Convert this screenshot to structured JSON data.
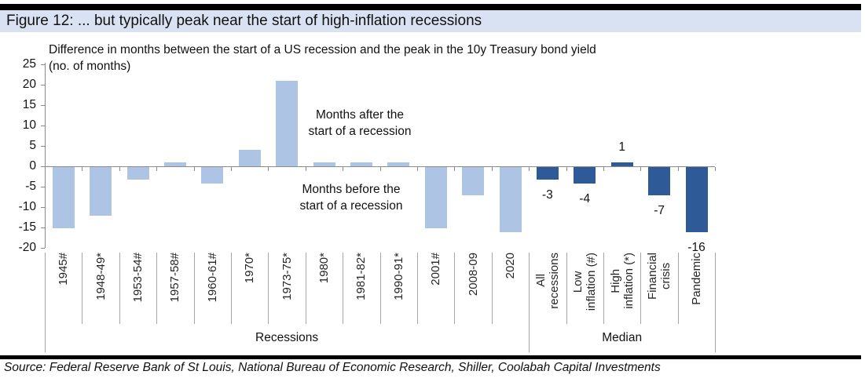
{
  "page": {
    "title": "Figure 12: ... but typically peak near the start of high-inflation recessions",
    "source": "Source: Federal Reserve Bank of St Louis, National Bureau of Economic Research, Shiller, Coolabah Capital Investments"
  },
  "chart_data": {
    "type": "bar",
    "title": "Difference in months between the start of a US recession and the peak in the 10y Treasury bond yield",
    "ylabel": "(no. of months)",
    "ylim": [
      -20,
      25
    ],
    "yticks": [
      25,
      20,
      15,
      10,
      5,
      0,
      -5,
      -10,
      -15,
      -20
    ],
    "grid": false,
    "legend": "none",
    "annotations": [
      {
        "name": "months-after",
        "text": "Months after the\nstart of a recession"
      },
      {
        "name": "months-before",
        "text": "Months before the\nstart of a recession"
      }
    ],
    "groups": [
      {
        "label": "Recessions",
        "bar_color": "#AEC4E5",
        "value_labels": false,
        "categories": [
          "1945#",
          "1948-49*",
          "1953-54#",
          "1957-58#",
          "1960-61#",
          "1970*",
          "1973-75*",
          "1980*",
          "1981-82*",
          "1990-91*",
          "2001#",
          "2008-09",
          "2020"
        ],
        "values": [
          -15,
          -12,
          -3,
          1,
          -4,
          4,
          21,
          1,
          1,
          1,
          -15,
          -7,
          -16
        ]
      },
      {
        "label": "Median",
        "bar_color": "#2E5B97",
        "value_labels": true,
        "categories": [
          "All\nrecessions",
          "Low\ninflation (#)",
          "High\ninflation (*)",
          "Financial\ncrisis",
          "Pandemic"
        ],
        "values": [
          -3,
          -4,
          1,
          -7,
          -16
        ]
      }
    ]
  },
  "colors": {
    "title_bg": "#D9E2F3",
    "bar_light": "#AEC4E5",
    "bar_dark": "#2E5B97",
    "axis": "#8A8A8A",
    "separator": "#A6A6A6",
    "rule": "#000000"
  }
}
